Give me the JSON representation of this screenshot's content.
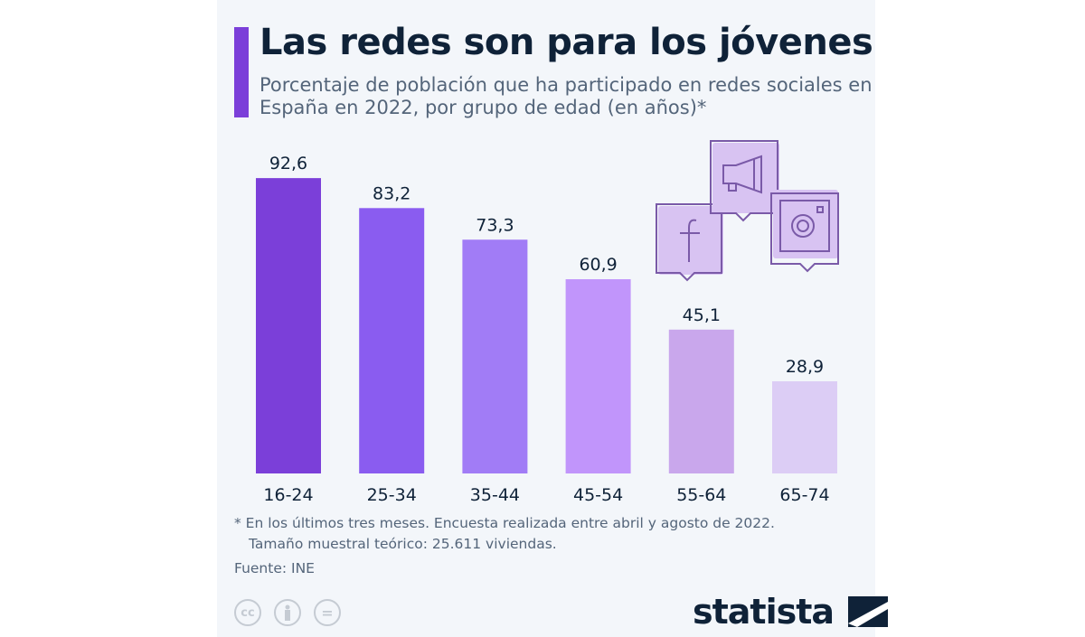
{
  "header": {
    "title": "Las redes son para los jóvenes",
    "subtitle": "Porcentaje de población que ha participado en redes sociales en España en 2022, por grupo de edad (en años)*"
  },
  "chart_data": {
    "type": "bar",
    "title": "Las redes son para los jóvenes",
    "subtitle": "Porcentaje de población que ha participado en redes sociales en España en 2022, por grupo de edad (en años)*",
    "categories": [
      "16-24",
      "25-34",
      "35-44",
      "45-54",
      "55-64",
      "65-74"
    ],
    "values": [
      92.6,
      83.2,
      73.3,
      60.9,
      45.1,
      28.9
    ],
    "labels": [
      "92,6",
      "83,2",
      "73,3",
      "60,9",
      "45,1",
      "28,9"
    ],
    "colors": [
      "#7b3fd9",
      "#8a5cf0",
      "#a17cf6",
      "#c195fb",
      "#c9a7ec",
      "#dccdf5"
    ],
    "ylim": [
      0,
      100
    ],
    "grid": false,
    "legend": "none"
  },
  "footer": {
    "note_line1": "* En los últimos tres meses. Encuesta realizada entre abril y agosto de 2022.",
    "note_line2": "Tamaño muestral teórico: 25.611 viviendas.",
    "source": "Fuente: INE",
    "license_icons": [
      "creative-commons-icon",
      "attribution-icon",
      "no-derivatives-icon"
    ],
    "license_cc": "cc",
    "license_nd": "=",
    "logo": "statista"
  },
  "decor_icons": [
    "facebook-icon",
    "megaphone-icon",
    "instagram-icon"
  ],
  "colors": {
    "accent": "#7b3fd9",
    "title": "#0f2238",
    "text": "#54657a",
    "background": "#f3f6fa"
  }
}
